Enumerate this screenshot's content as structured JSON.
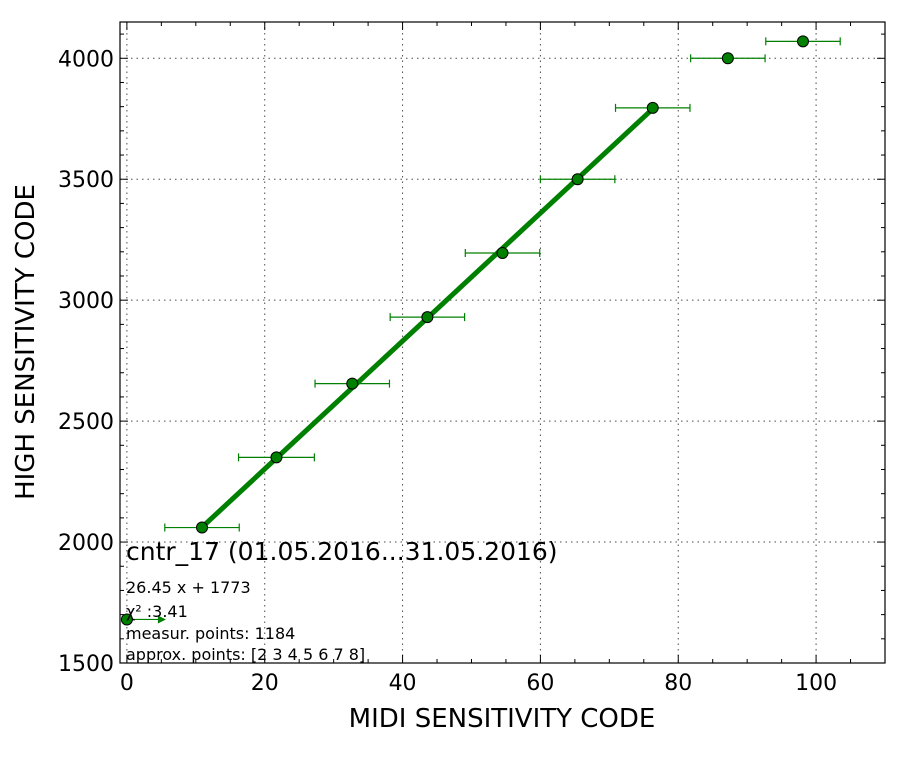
{
  "chart_data": {
    "type": "scatter",
    "xlabel": "MIDI SENSITIVITY CODE",
    "ylabel": "HIGH SENSITIVITY CODE",
    "xlim": [
      -1,
      110
    ],
    "ylim": [
      1500,
      4150
    ],
    "x_ticks": [
      0,
      20,
      40,
      60,
      80,
      100
    ],
    "y_ticks": [
      1500,
      2000,
      2500,
      3000,
      3500,
      4000
    ],
    "grid": true,
    "colors": {
      "series": "#008000",
      "marker_edge": "#000000"
    },
    "points": [
      {
        "x": 0,
        "y": 1680,
        "xerr": 0
      },
      {
        "x": 10.9,
        "y": 2060,
        "xerr": 5.4
      },
      {
        "x": 21.7,
        "y": 2350,
        "xerr": 5.5
      },
      {
        "x": 32.7,
        "y": 2655,
        "xerr": 5.4
      },
      {
        "x": 43.6,
        "y": 2930,
        "xerr": 5.4
      },
      {
        "x": 54.5,
        "y": 3195,
        "xerr": 5.4
      },
      {
        "x": 65.4,
        "y": 3500,
        "xerr": 5.4
      },
      {
        "x": 76.3,
        "y": 3795,
        "xerr": 5.4
      },
      {
        "x": 87.2,
        "y": 4000,
        "xerr": 5.4
      },
      {
        "x": 98.1,
        "y": 4070,
        "xerr": 5.4
      }
    ],
    "fit": {
      "slope": 26.45,
      "intercept": 1773,
      "x_range": [
        10.9,
        76.3
      ]
    },
    "annotations": {
      "title": "cntr_17 (01.05.2016...31.05.2016)",
      "equation": "26.45 x + 1773",
      "chi2": "χ² :3.41",
      "measur_points": "measur. points: 1184",
      "approx_points": "approx. points: [2 3 4 5 6 7 8]"
    }
  }
}
